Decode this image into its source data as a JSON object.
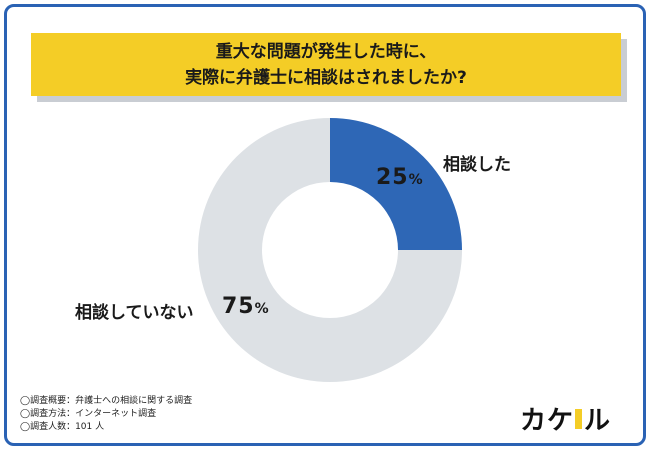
{
  "title": {
    "line1": "重大な問題が発生した時に、",
    "line2": "実際に弁護士に相談はされましたか?"
  },
  "chart_data": {
    "type": "pie",
    "donut": true,
    "categories": [
      "相談した",
      "相談していない"
    ],
    "values": [
      25,
      75
    ],
    "value_labels": [
      "25",
      "75"
    ],
    "unit": "%",
    "colors": [
      "#2e67b6",
      "#dde1e5"
    ]
  },
  "notes": [
    "◯調査概要：弁護士への相談に関する調査",
    "◯調査方法：インターネット調査",
    "◯調査人数：101 人"
  ],
  "logo": {
    "text_part1": "カケ",
    "text_part2": "ル"
  }
}
